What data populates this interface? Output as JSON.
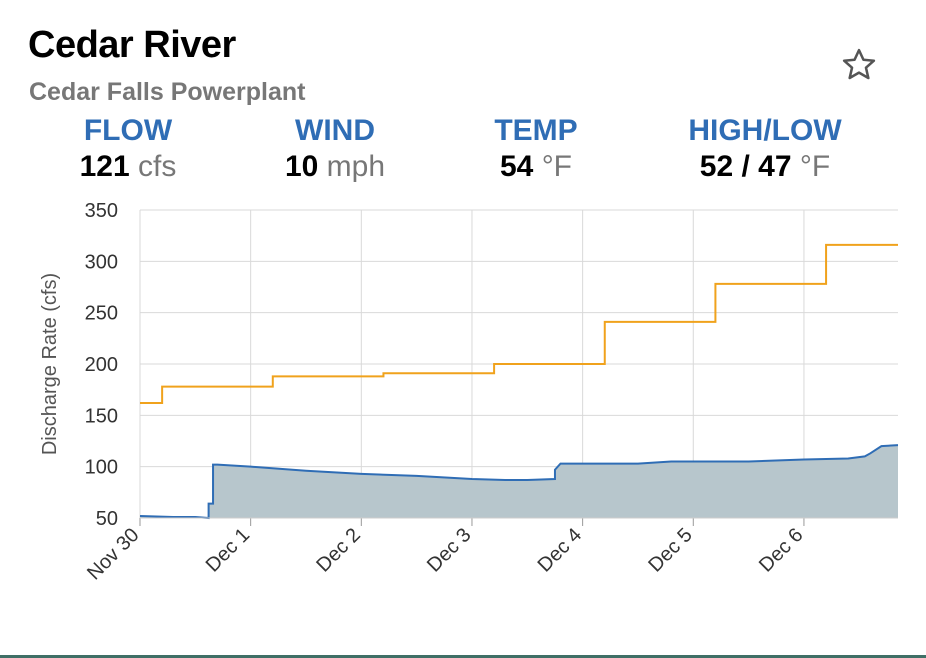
{
  "header": {
    "title": "Cedar River",
    "subtitle": "Cedar Falls Powerplant"
  },
  "stats": [
    {
      "label": "FLOW",
      "value": "121",
      "unit": "cfs"
    },
    {
      "label": "WIND",
      "value": "10",
      "unit": "mph"
    },
    {
      "label": "TEMP",
      "value": "54",
      "unit": "°F"
    },
    {
      "label": "HIGH/LOW",
      "value": "52 / 47",
      "unit": "°F"
    }
  ],
  "colors": {
    "flow_line": "#2f6db5",
    "flow_fill": "#b7c6cc",
    "forecast_line": "#f0a21c",
    "grid": "#d9d9d9",
    "label_blue": "#2f6db5"
  },
  "icons": {
    "favorite": "star-outline-icon"
  },
  "chart_data": {
    "type": "area",
    "ylabel": "Discharge Rate (cfs)",
    "xlabel": "",
    "ylim": [
      50,
      350
    ],
    "yticks": [
      50,
      100,
      150,
      200,
      250,
      300,
      350
    ],
    "xlim": [
      0,
      6.85
    ],
    "xticks": [
      {
        "x": 0,
        "label": "Nov 30"
      },
      {
        "x": 1,
        "label": "Dec 1"
      },
      {
        "x": 2,
        "label": "Dec 2"
      },
      {
        "x": 3,
        "label": "Dec 3"
      },
      {
        "x": 4,
        "label": "Dec 4"
      },
      {
        "x": 5,
        "label": "Dec 5"
      },
      {
        "x": 6,
        "label": "Dec 6"
      }
    ],
    "grid": true,
    "series": [
      {
        "style": "step-line",
        "x": [
          0,
          0.2,
          0.2,
          1.2,
          1.2,
          2.2,
          2.2,
          3.2,
          3.2,
          4.2,
          4.2,
          5.2,
          5.2,
          6.2,
          6.2,
          6.85
        ],
        "values": [
          162,
          162,
          178,
          178,
          188,
          188,
          191,
          191,
          200,
          200,
          241,
          241,
          278,
          278,
          316,
          316
        ]
      },
      {
        "style": "filled-area",
        "x": [
          0,
          0.3,
          0.5,
          0.62,
          0.62,
          0.66,
          0.66,
          0.7,
          1.0,
          1.5,
          2.0,
          2.5,
          3.0,
          3.3,
          3.5,
          3.75,
          3.75,
          3.8,
          4.2,
          4.5,
          4.8,
          5.0,
          5.5,
          6.0,
          6.4,
          6.55,
          6.6,
          6.7,
          6.85
        ],
        "values": [
          52,
          51,
          51,
          50,
          64,
          64,
          102,
          102,
          100,
          96,
          93,
          91,
          88,
          87,
          87,
          88,
          97,
          103,
          103,
          103,
          105,
          105,
          105,
          107,
          108,
          110,
          113,
          120,
          121
        ]
      }
    ]
  }
}
